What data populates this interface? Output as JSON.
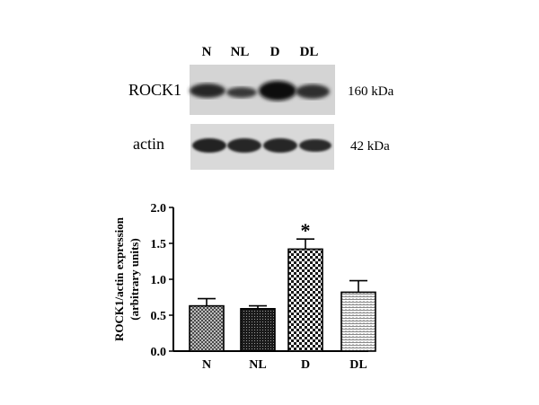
{
  "blot": {
    "lanes": [
      "N",
      "NL",
      "D",
      "DL"
    ],
    "rows": [
      {
        "protein": "ROCK1",
        "mw": "160 kDa"
      },
      {
        "protein": "actin",
        "mw": "42 kDa"
      }
    ]
  },
  "chart_data": {
    "type": "bar",
    "categories": [
      "N",
      "NL",
      "D",
      "DL"
    ],
    "values": [
      0.63,
      0.59,
      1.42,
      0.82
    ],
    "errors": [
      0.1,
      0.04,
      0.14,
      0.16
    ],
    "ylabel": "ROCK1/actin expression (arbitrary units)",
    "ylabel_lines": [
      "ROCK1/actin expression",
      "(arbitrary units)"
    ],
    "ylim": [
      0,
      2.0
    ],
    "yticks": [
      "0.0",
      "0.5",
      "1.0",
      "1.5",
      "2.0"
    ],
    "significance": {
      "category": "D",
      "mark": "*"
    },
    "grid": false
  }
}
